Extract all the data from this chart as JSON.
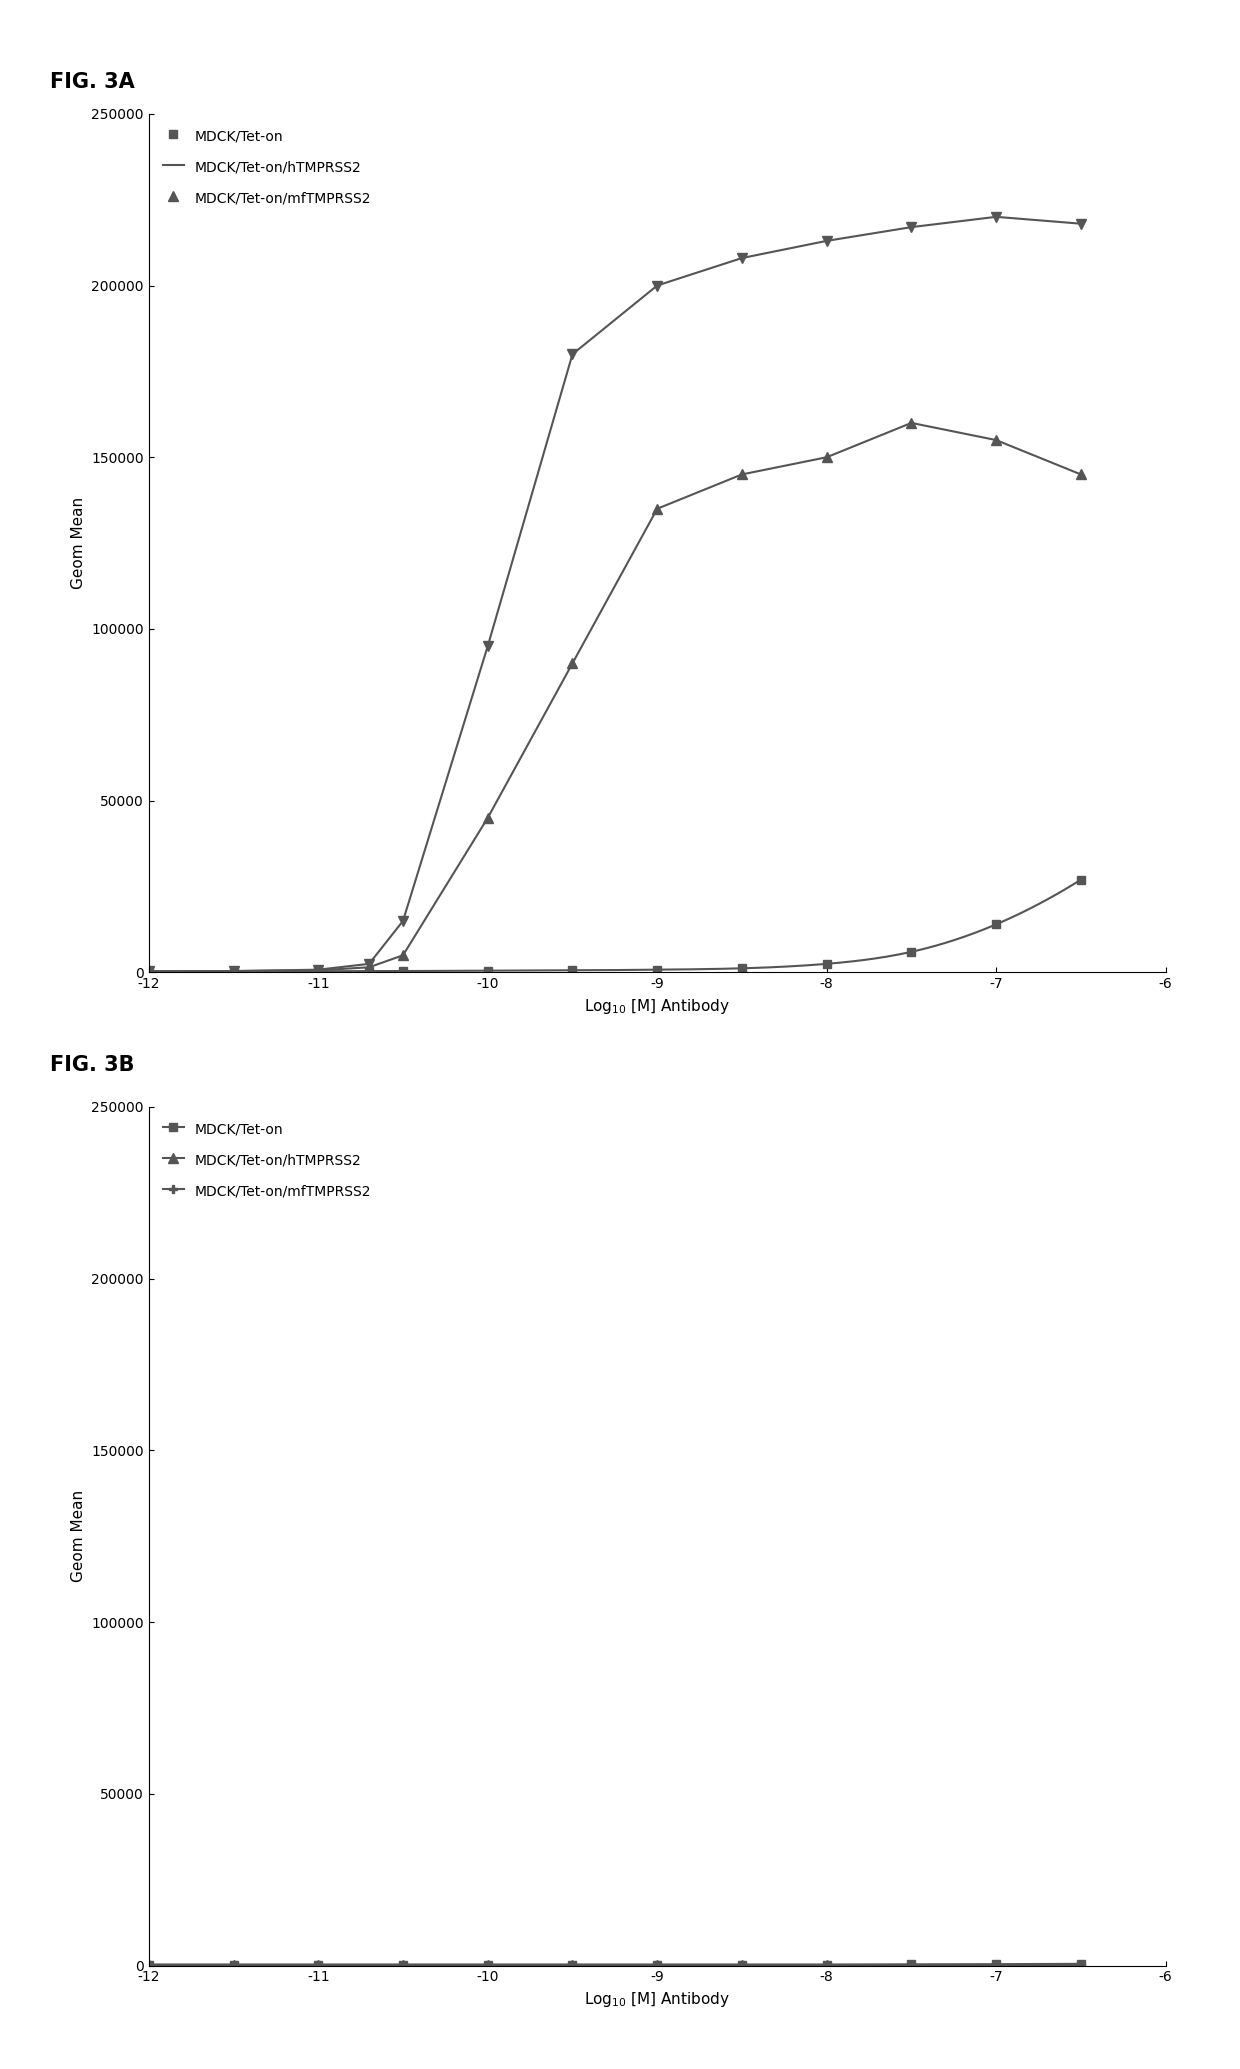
{
  "fig_title_A": "FIG. 3A",
  "fig_title_B": "FIG. 3B",
  "xlabel": "Log$_{10}$ [M] Antibody",
  "ylabel": "Geom Mean",
  "xlim": [
    -12,
    -6
  ],
  "xticks": [
    -12,
    -11,
    -10,
    -9,
    -8,
    -7,
    -6
  ],
  "xtick_labels": [
    "-12",
    "-11",
    "-10",
    "-9",
    "-8",
    "-7",
    "-6"
  ],
  "ylim_A": [
    0,
    250000
  ],
  "yticks_A": [
    0,
    50000,
    100000,
    150000,
    200000,
    250000
  ],
  "ylim_B": [
    0,
    250000
  ],
  "yticks_B": [
    0,
    50000,
    100000,
    150000,
    200000,
    250000
  ],
  "legend_labels": [
    "MDCK/Tet-on",
    "MDCK/Tet-on/hTMPRSS2",
    "MDCK/Tet-on/mfTMPRSS2"
  ],
  "series_A": {
    "MDCK_Tet_on": {
      "x": [
        -12,
        -11.5,
        -11,
        -10.7,
        -10.5,
        -10,
        -9.5,
        -9,
        -8.5,
        -8,
        -7.5,
        -7,
        -6.5
      ],
      "y": [
        200,
        250,
        300,
        350,
        400,
        500,
        600,
        800,
        1200,
        2500,
        6000,
        14000,
        27000
      ],
      "color": "#555555",
      "marker": "s",
      "markersize": 6
    },
    "MDCK_Tet_hTMPRSS2": {
      "x": [
        -12,
        -11.5,
        -11,
        -10.7,
        -10.5,
        -10,
        -9.5,
        -9,
        -8.5,
        -8,
        -7.5,
        -7,
        -6.5
      ],
      "y": [
        300,
        400,
        600,
        1500,
        5000,
        45000,
        90000,
        135000,
        145000,
        150000,
        160000,
        155000,
        145000
      ],
      "color": "#555555",
      "marker": "^",
      "markersize": 7
    },
    "MDCK_Tet_mfTMPRSS2": {
      "x": [
        -12,
        -11.5,
        -11,
        -10.7,
        -10.5,
        -10,
        -9.5,
        -9,
        -8.5,
        -8,
        -7.5,
        -7,
        -6.5
      ],
      "y": [
        300,
        400,
        800,
        2500,
        15000,
        95000,
        180000,
        200000,
        208000,
        213000,
        217000,
        220000,
        218000
      ],
      "color": "#555555",
      "marker": "v",
      "markersize": 7
    }
  },
  "series_B": {
    "MDCK_Tet_on": {
      "x": [
        -12,
        -11.5,
        -11,
        -10.5,
        -10,
        -9.5,
        -9,
        -8.5,
        -8,
        -7.5,
        -7,
        -6.5
      ],
      "y": [
        300,
        300,
        300,
        300,
        300,
        300,
        300,
        300,
        300,
        350,
        400,
        500
      ],
      "color": "#555555",
      "marker": "s",
      "markersize": 6
    },
    "MDCK_Tet_hTMPRSS2": {
      "x": [
        -12,
        -11.5,
        -11,
        -10.5,
        -10,
        -9.5,
        -9,
        -8.5,
        -8,
        -7.5,
        -7,
        -6.5
      ],
      "y": [
        300,
        300,
        300,
        300,
        300,
        300,
        300,
        300,
        300,
        300,
        300,
        300
      ],
      "color": "#555555",
      "marker": "^",
      "markersize": 7
    },
    "MDCK_Tet_mfTMPRSS2": {
      "x": [
        -12,
        -11.5,
        -11,
        -10.5,
        -10,
        -9.5,
        -9,
        -8.5,
        -8,
        -7.5,
        -7,
        -6.5
      ],
      "y": [
        300,
        300,
        300,
        300,
        300,
        300,
        300,
        300,
        300,
        300,
        300,
        300
      ],
      "color": "#555555",
      "marker": "P",
      "markersize": 6
    }
  },
  "line_color": "#555555",
  "line_width": 1.5,
  "background_color": "#ffffff",
  "fig_label_fontsize": 15,
  "axis_label_fontsize": 11,
  "tick_fontsize": 10,
  "legend_fontsize": 10
}
